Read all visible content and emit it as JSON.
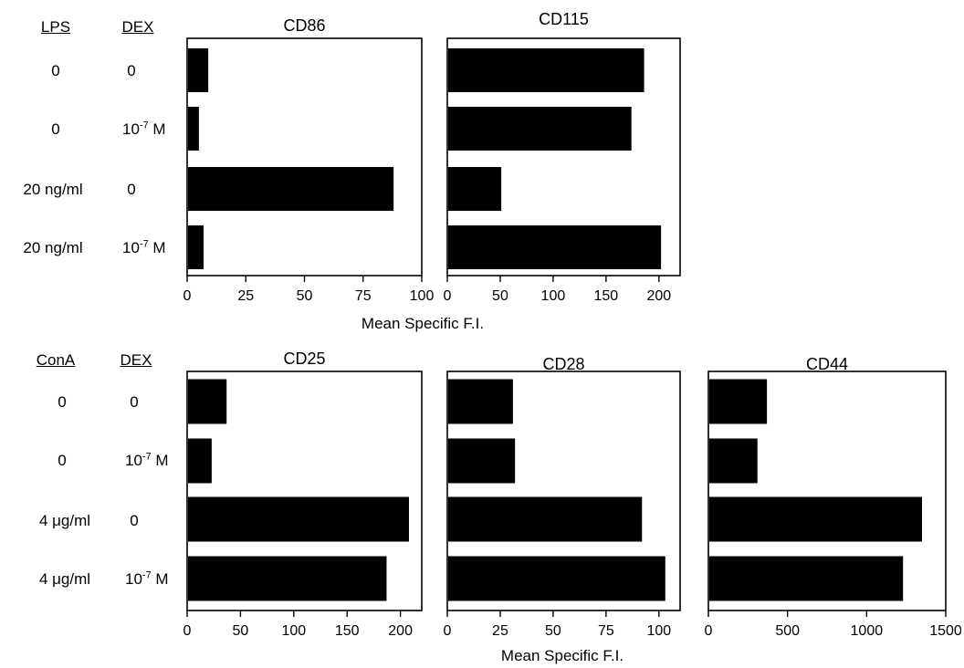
{
  "top": {
    "treatment_header": "LPS",
    "dex_header": "DEX",
    "rows": [
      {
        "treatment": "0",
        "dex_base": "0",
        "dex_exp": ""
      },
      {
        "treatment": "0",
        "dex_base": "10",
        "dex_exp": "-7",
        "dex_unit": " M"
      },
      {
        "treatment": "20 ng/ml",
        "dex_base": "0",
        "dex_exp": ""
      },
      {
        "treatment": "20 ng/ml",
        "dex_base": "10",
        "dex_exp": "-7",
        "dex_unit": " M"
      }
    ],
    "xlabel": "Mean Specific F.I."
  },
  "bottom": {
    "treatment_header": "ConA",
    "dex_header": "DEX",
    "rows": [
      {
        "treatment": "0",
        "dex_base": "0",
        "dex_exp": ""
      },
      {
        "treatment": "0",
        "dex_base": "10",
        "dex_exp": "-7",
        "dex_unit": " M"
      },
      {
        "treatment": "4 μg/ml",
        "dex_base": "0",
        "dex_exp": ""
      },
      {
        "treatment": "4 μg/ml",
        "dex_base": "10",
        "dex_exp": "-7",
        "dex_unit": " M"
      }
    ],
    "xlabel": "Mean Specific F.I."
  },
  "bar_color": "#000000",
  "chart_data": [
    {
      "type": "bar",
      "orientation": "horizontal",
      "title": "CD86",
      "categories": [
        "LPS 0 / DEX 0",
        "LPS 0 / DEX 10-7 M",
        "LPS 20 ng/ml / DEX 0",
        "LPS 20 ng/ml / DEX 10-7 M"
      ],
      "values": [
        9,
        5,
        88,
        7
      ],
      "xlim": [
        0,
        100
      ],
      "xticks": [
        0,
        25,
        50,
        75,
        100
      ],
      "xlabel": "",
      "ylabel": ""
    },
    {
      "type": "bar",
      "orientation": "horizontal",
      "title": "CD115",
      "categories": [
        "LPS 0 / DEX 0",
        "LPS 0 / DEX 10-7 M",
        "LPS 20 ng/ml / DEX 0",
        "LPS 20 ng/ml / DEX 10-7 M"
      ],
      "values": [
        186,
        174,
        51,
        202
      ],
      "xlim": [
        0,
        220
      ],
      "xticks": [
        0,
        50,
        100,
        150,
        200
      ],
      "xlabel": "",
      "ylabel": ""
    },
    {
      "type": "bar",
      "orientation": "horizontal",
      "title": "CD25",
      "categories": [
        "ConA 0 / DEX 0",
        "ConA 0 / DEX 10-7 M",
        "ConA 4 μg/ml / DEX 0",
        "ConA 4 μg/ml / DEX 10-7 M"
      ],
      "values": [
        37,
        23,
        208,
        187
      ],
      "xlim": [
        0,
        220
      ],
      "xticks": [
        0,
        50,
        100,
        150,
        200
      ],
      "xlabel": "",
      "ylabel": ""
    },
    {
      "type": "bar",
      "orientation": "horizontal",
      "title": "CD28",
      "categories": [
        "ConA 0 / DEX 0",
        "ConA 0 / DEX 10-7 M",
        "ConA 4 μg/ml / DEX 0",
        "ConA 4 μg/ml / DEX 10-7 M"
      ],
      "values": [
        31,
        32,
        92,
        103
      ],
      "xlim": [
        0,
        110
      ],
      "xticks": [
        0,
        25,
        50,
        75,
        100
      ],
      "xlabel": "",
      "ylabel": ""
    },
    {
      "type": "bar",
      "orientation": "horizontal",
      "title": "CD44",
      "categories": [
        "ConA 0 / DEX 0",
        "ConA 0 / DEX 10-7 M",
        "ConA 4 μg/ml / DEX 0",
        "ConA 4 μg/ml / DEX 10-7 M"
      ],
      "values": [
        370,
        310,
        1350,
        1230
      ],
      "xlim": [
        0,
        1500
      ],
      "xticks": [
        0,
        500,
        1000,
        1500
      ],
      "xlabel": "",
      "ylabel": ""
    }
  ]
}
